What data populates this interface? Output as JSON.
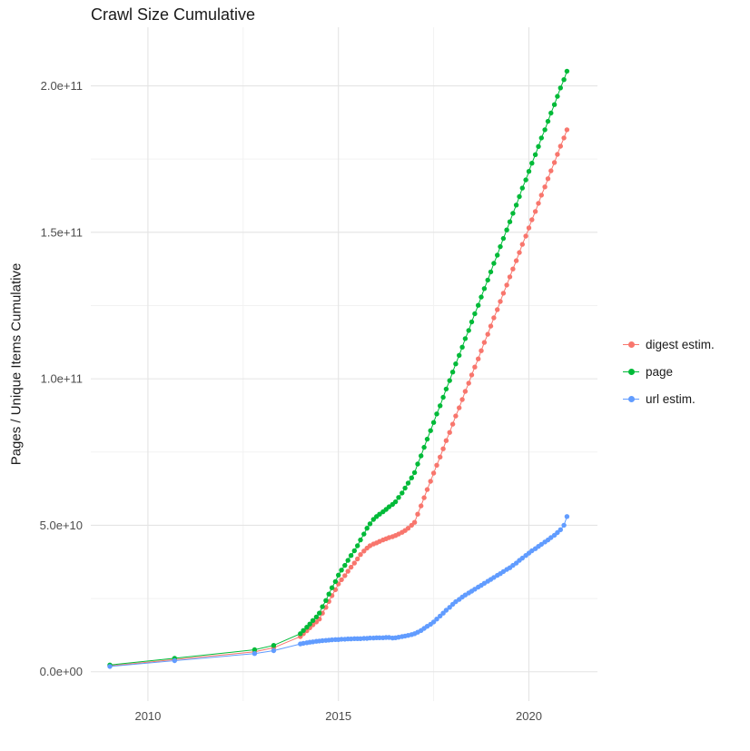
{
  "chart_data": {
    "type": "scatter",
    "lines": true,
    "title": "Crawl Size Cumulative",
    "xlabel": "",
    "ylabel": "Pages / Unique Items Cumulative",
    "x_range": [
      2008.5,
      2021.8
    ],
    "y_range": [
      -10,
      220
    ],
    "y_unit": 1000000000.0,
    "grid": true,
    "legend_position": "right",
    "colors": {
      "grid_major": "#e4e4e4",
      "grid_minor": "#f2f2f2",
      "tick_text": "#4d4d4d"
    },
    "x_ticks": [
      {
        "value": 2010,
        "label": "2010"
      },
      {
        "value": 2015,
        "label": "2015"
      },
      {
        "value": 2020,
        "label": "2020"
      }
    ],
    "x_minor": [
      2012.5,
      2017.5
    ],
    "y_ticks": [
      {
        "value": 0,
        "label": "0.0e+00"
      },
      {
        "value": 50,
        "label": "5.0e+10"
      },
      {
        "value": 100,
        "label": "1.0e+11"
      },
      {
        "value": 150,
        "label": "1.5e+11"
      },
      {
        "value": 200,
        "label": "2.0e+11"
      }
    ],
    "y_minor": [
      25,
      75,
      125,
      175
    ],
    "series": [
      {
        "name": "digest estim.",
        "color": "#F8766D",
        "points": [
          [
            2009.0,
            2.0
          ],
          [
            2010.7,
            4.2
          ],
          [
            2012.8,
            6.8
          ],
          [
            2013.3,
            8.2
          ],
          [
            2014.0,
            12
          ],
          [
            2014.08,
            13
          ],
          [
            2014.17,
            14
          ],
          [
            2014.25,
            15
          ],
          [
            2014.33,
            16
          ],
          [
            2014.42,
            17
          ],
          [
            2014.5,
            18
          ],
          [
            2014.58,
            20
          ],
          [
            2014.67,
            22
          ],
          [
            2014.75,
            24
          ],
          [
            2014.83,
            26
          ],
          [
            2014.92,
            28
          ],
          [
            2015.0,
            30
          ],
          [
            2015.08,
            31.4
          ],
          [
            2015.17,
            32.8
          ],
          [
            2015.25,
            34.3
          ],
          [
            2015.33,
            35.7
          ],
          [
            2015.42,
            37.1
          ],
          [
            2015.5,
            38.5
          ],
          [
            2015.58,
            40
          ],
          [
            2015.67,
            41.2
          ],
          [
            2015.75,
            42.2
          ],
          [
            2015.83,
            43
          ],
          [
            2015.92,
            43.6
          ],
          [
            2016.0,
            44
          ],
          [
            2016.08,
            44.5
          ],
          [
            2016.17,
            45
          ],
          [
            2016.25,
            45.4
          ],
          [
            2016.33,
            45.8
          ],
          [
            2016.42,
            46.1
          ],
          [
            2016.5,
            46.5
          ],
          [
            2016.58,
            47
          ],
          [
            2016.67,
            47.6
          ],
          [
            2016.75,
            48.2
          ],
          [
            2016.83,
            49
          ],
          [
            2016.92,
            50
          ],
          [
            2017.0,
            51
          ],
          [
            2017.08,
            53.8
          ],
          [
            2017.17,
            56.6
          ],
          [
            2017.25,
            59.4
          ],
          [
            2017.33,
            62.2
          ],
          [
            2017.42,
            65
          ],
          [
            2017.5,
            67.8
          ],
          [
            2017.58,
            70.5
          ],
          [
            2017.67,
            73.3
          ],
          [
            2017.75,
            76.1
          ],
          [
            2017.83,
            78.9
          ],
          [
            2017.92,
            81.7
          ],
          [
            2018.0,
            84.5
          ],
          [
            2018.08,
            87.3
          ],
          [
            2018.17,
            90.1
          ],
          [
            2018.25,
            92.9
          ],
          [
            2018.33,
            95.7
          ],
          [
            2018.42,
            98.5
          ],
          [
            2018.5,
            101.3
          ],
          [
            2018.58,
            104
          ],
          [
            2018.67,
            106.8
          ],
          [
            2018.75,
            109.6
          ],
          [
            2018.83,
            112.4
          ],
          [
            2018.92,
            115.2
          ],
          [
            2019.0,
            118
          ],
          [
            2019.08,
            120.8
          ],
          [
            2019.17,
            123.6
          ],
          [
            2019.25,
            126.4
          ],
          [
            2019.33,
            129.2
          ],
          [
            2019.42,
            132
          ],
          [
            2019.5,
            134.8
          ],
          [
            2019.58,
            137.5
          ],
          [
            2019.67,
            140.3
          ],
          [
            2019.75,
            143.1
          ],
          [
            2019.83,
            145.9
          ],
          [
            2019.92,
            148.7
          ],
          [
            2020.0,
            151.5
          ],
          [
            2020.08,
            154.3
          ],
          [
            2020.17,
            157.1
          ],
          [
            2020.25,
            159.9
          ],
          [
            2020.33,
            162.7
          ],
          [
            2020.42,
            165.5
          ],
          [
            2020.5,
            168.3
          ],
          [
            2020.58,
            171
          ],
          [
            2020.67,
            173.8
          ],
          [
            2020.75,
            176.6
          ],
          [
            2020.83,
            179.4
          ],
          [
            2020.92,
            182.2
          ],
          [
            2021.0,
            185
          ]
        ]
      },
      {
        "name": "page",
        "color": "#00BA38",
        "points": [
          [
            2009.0,
            2.3
          ],
          [
            2010.7,
            4.6
          ],
          [
            2012.8,
            7.5
          ],
          [
            2013.3,
            9.0
          ],
          [
            2014.0,
            13
          ],
          [
            2014.08,
            14.1
          ],
          [
            2014.17,
            15.2
          ],
          [
            2014.25,
            16.3
          ],
          [
            2014.33,
            17.5
          ],
          [
            2014.42,
            18.7
          ],
          [
            2014.5,
            20
          ],
          [
            2014.58,
            22.2
          ],
          [
            2014.67,
            24.3
          ],
          [
            2014.75,
            26.5
          ],
          [
            2014.83,
            28.7
          ],
          [
            2014.92,
            30.8
          ],
          [
            2015.0,
            33
          ],
          [
            2015.08,
            34.7
          ],
          [
            2015.17,
            36.3
          ],
          [
            2015.25,
            38
          ],
          [
            2015.33,
            39.7
          ],
          [
            2015.42,
            41.3
          ],
          [
            2015.5,
            43
          ],
          [
            2015.58,
            45
          ],
          [
            2015.67,
            47
          ],
          [
            2015.75,
            49
          ],
          [
            2015.83,
            50.5
          ],
          [
            2015.92,
            52
          ],
          [
            2016.0,
            53
          ],
          [
            2016.08,
            53.8
          ],
          [
            2016.17,
            54.6
          ],
          [
            2016.25,
            55.4
          ],
          [
            2016.33,
            56.3
          ],
          [
            2016.42,
            57.1
          ],
          [
            2016.5,
            58
          ],
          [
            2016.58,
            59.5
          ],
          [
            2016.67,
            61
          ],
          [
            2016.75,
            62.7
          ],
          [
            2016.83,
            64.4
          ],
          [
            2016.92,
            66.2
          ],
          [
            2017.0,
            68
          ],
          [
            2017.08,
            70.9
          ],
          [
            2017.17,
            73.7
          ],
          [
            2017.25,
            76.6
          ],
          [
            2017.33,
            79.4
          ],
          [
            2017.42,
            82.3
          ],
          [
            2017.5,
            85.1
          ],
          [
            2017.58,
            88
          ],
          [
            2017.67,
            90.8
          ],
          [
            2017.75,
            93.7
          ],
          [
            2017.83,
            96.5
          ],
          [
            2017.92,
            99.4
          ],
          [
            2018.0,
            102.3
          ],
          [
            2018.08,
            105.1
          ],
          [
            2018.17,
            108
          ],
          [
            2018.25,
            110.8
          ],
          [
            2018.33,
            113.7
          ],
          [
            2018.42,
            116.5
          ],
          [
            2018.5,
            119.4
          ],
          [
            2018.58,
            122.2
          ],
          [
            2018.67,
            125.1
          ],
          [
            2018.75,
            127.9
          ],
          [
            2018.83,
            130.8
          ],
          [
            2018.92,
            133.7
          ],
          [
            2019.0,
            136.5
          ],
          [
            2019.08,
            139.4
          ],
          [
            2019.17,
            142.2
          ],
          [
            2019.25,
            145.1
          ],
          [
            2019.33,
            147.9
          ],
          [
            2019.42,
            150.8
          ],
          [
            2019.5,
            153.6
          ],
          [
            2019.58,
            156.5
          ],
          [
            2019.67,
            159.3
          ],
          [
            2019.75,
            162.2
          ],
          [
            2019.83,
            165.1
          ],
          [
            2019.92,
            167.9
          ],
          [
            2020.0,
            170.8
          ],
          [
            2020.08,
            173.6
          ],
          [
            2020.17,
            176.5
          ],
          [
            2020.25,
            179.3
          ],
          [
            2020.33,
            182.2
          ],
          [
            2020.42,
            185
          ],
          [
            2020.5,
            187.9
          ],
          [
            2020.58,
            190.7
          ],
          [
            2020.67,
            193.6
          ],
          [
            2020.75,
            196.4
          ],
          [
            2020.83,
            199.3
          ],
          [
            2020.92,
            202.1
          ],
          [
            2021.0,
            205
          ]
        ]
      },
      {
        "name": "url estim.",
        "color": "#619CFF",
        "points": [
          [
            2009.0,
            1.8
          ],
          [
            2010.7,
            3.8
          ],
          [
            2012.8,
            6.2
          ],
          [
            2013.3,
            7.2
          ],
          [
            2014.0,
            9.5
          ],
          [
            2014.08,
            9.7
          ],
          [
            2014.17,
            9.9
          ],
          [
            2014.25,
            10.1
          ],
          [
            2014.33,
            10.2
          ],
          [
            2014.42,
            10.4
          ],
          [
            2014.5,
            10.5
          ],
          [
            2014.58,
            10.6
          ],
          [
            2014.67,
            10.7
          ],
          [
            2014.75,
            10.8
          ],
          [
            2014.83,
            10.9
          ],
          [
            2014.92,
            11
          ],
          [
            2015.0,
            11
          ],
          [
            2015.08,
            11.1
          ],
          [
            2015.17,
            11.1
          ],
          [
            2015.25,
            11.2
          ],
          [
            2015.33,
            11.2
          ],
          [
            2015.42,
            11.3
          ],
          [
            2015.5,
            11.3
          ],
          [
            2015.58,
            11.3
          ],
          [
            2015.67,
            11.4
          ],
          [
            2015.75,
            11.4
          ],
          [
            2015.83,
            11.5
          ],
          [
            2015.92,
            11.5
          ],
          [
            2016.0,
            11.6
          ],
          [
            2016.08,
            11.6
          ],
          [
            2016.17,
            11.6
          ],
          [
            2016.25,
            11.7
          ],
          [
            2016.33,
            11.7
          ],
          [
            2016.42,
            11.5
          ],
          [
            2016.5,
            11.6
          ],
          [
            2016.58,
            11.8
          ],
          [
            2016.67,
            12
          ],
          [
            2016.75,
            12.2
          ],
          [
            2016.83,
            12.4
          ],
          [
            2016.92,
            12.7
          ],
          [
            2017.0,
            13
          ],
          [
            2017.08,
            13.5
          ],
          [
            2017.17,
            14.1
          ],
          [
            2017.25,
            14.8
          ],
          [
            2017.33,
            15.5
          ],
          [
            2017.42,
            16.2
          ],
          [
            2017.5,
            17
          ],
          [
            2017.58,
            18
          ],
          [
            2017.67,
            19
          ],
          [
            2017.75,
            20
          ],
          [
            2017.83,
            21
          ],
          [
            2017.92,
            22
          ],
          [
            2018.0,
            23
          ],
          [
            2018.08,
            23.9
          ],
          [
            2018.17,
            24.7
          ],
          [
            2018.25,
            25.5
          ],
          [
            2018.33,
            26.2
          ],
          [
            2018.42,
            26.9
          ],
          [
            2018.5,
            27.5
          ],
          [
            2018.58,
            28.2
          ],
          [
            2018.67,
            28.9
          ],
          [
            2018.75,
            29.5
          ],
          [
            2018.83,
            30.2
          ],
          [
            2018.92,
            30.9
          ],
          [
            2019.0,
            31.5
          ],
          [
            2019.08,
            32.2
          ],
          [
            2019.17,
            32.9
          ],
          [
            2019.25,
            33.5
          ],
          [
            2019.33,
            34.2
          ],
          [
            2019.42,
            34.9
          ],
          [
            2019.5,
            35.5
          ],
          [
            2019.58,
            36.3
          ],
          [
            2019.67,
            37.1
          ],
          [
            2019.75,
            38
          ],
          [
            2019.83,
            38.8
          ],
          [
            2019.92,
            39.7
          ],
          [
            2020.0,
            40.5
          ],
          [
            2020.08,
            41.3
          ],
          [
            2020.17,
            42
          ],
          [
            2020.25,
            42.8
          ],
          [
            2020.33,
            43.5
          ],
          [
            2020.42,
            44.3
          ],
          [
            2020.5,
            45
          ],
          [
            2020.58,
            45.8
          ],
          [
            2020.67,
            46.6
          ],
          [
            2020.75,
            47.5
          ],
          [
            2020.83,
            48.5
          ],
          [
            2020.92,
            50
          ],
          [
            2021.0,
            53
          ]
        ]
      }
    ]
  }
}
